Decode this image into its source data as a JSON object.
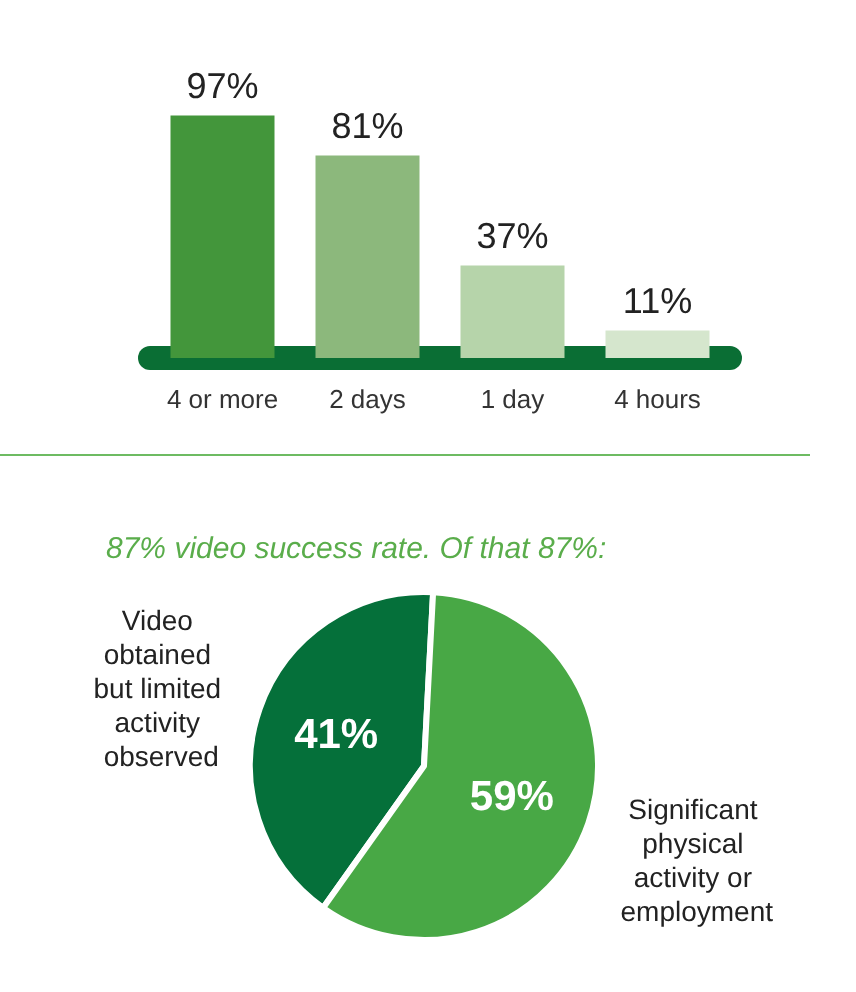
{
  "chart_data": [
    {
      "type": "bar",
      "categories": [
        "4 or more",
        "2 days",
        "1 day",
        "4 hours"
      ],
      "values": [
        97,
        81,
        37,
        11
      ],
      "colors": [
        "#43963b",
        "#8cb87c",
        "#b6d4aa",
        "#d5e6cd"
      ],
      "value_labels": [
        "97%",
        "81%",
        "37%",
        "11%"
      ],
      "tick_labels": "x"
    },
    {
      "type": "pie",
      "title": "87% video success rate. Of that 87%:",
      "categories": [
        "Video obtained but limited activity observed",
        "Significant physical activity or employment"
      ],
      "values": [
        41,
        59
      ],
      "colors": [
        "#05703a",
        "#48a845"
      ],
      "value_labels": [
        "41%",
        "59%"
      ]
    }
  ]
}
